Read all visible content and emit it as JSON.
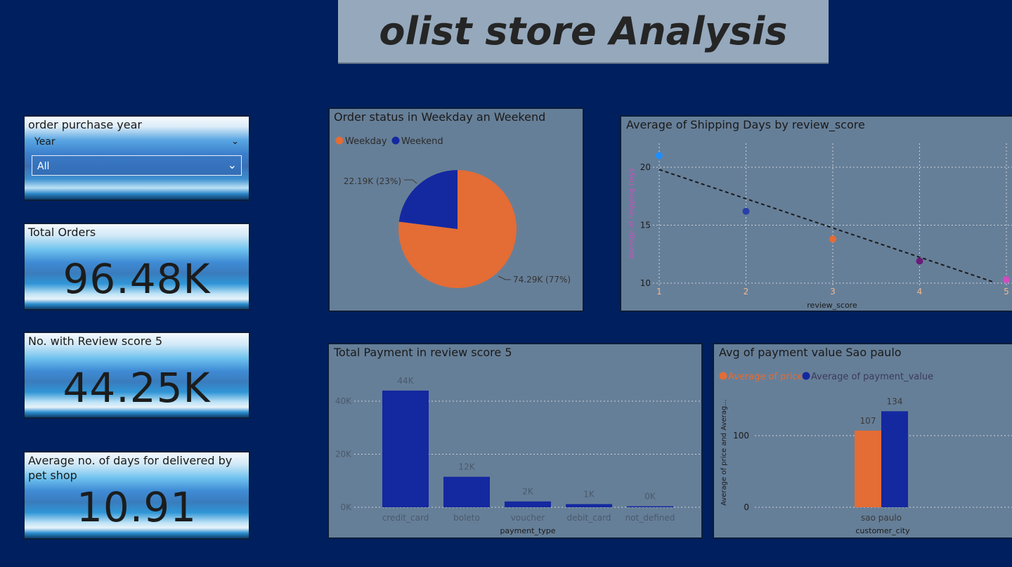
{
  "title": "olist store Analysis",
  "filter": {
    "label": "order purchase year",
    "field_label": "Year",
    "selected": "All"
  },
  "kpis": {
    "total_orders": {
      "label": "Total Orders",
      "value": "96.48K"
    },
    "review5": {
      "label": "No. with Review score 5",
      "value": "44.25K"
    },
    "petshop": {
      "label": "Average no. of days for delivered by pet shop",
      "value": "10.91"
    }
  },
  "colors": {
    "background": "#001f5e",
    "panel": "#667f98",
    "orange": "#e46c35",
    "blue": "#1428a0"
  },
  "chart_data": [
    {
      "type": "pie",
      "title": "Order status in Weekday an Weekend",
      "legend_position": "top-left",
      "slices": [
        {
          "name": "Weekday",
          "value": 74.29,
          "label": "74.29K (77%)",
          "color": "#e46c35"
        },
        {
          "name": "Weekend",
          "value": 22.19,
          "label": "22.19K (23%)",
          "color": "#1428a0"
        }
      ]
    },
    {
      "type": "scatter",
      "title": "Average of Shipping Days by review_score",
      "xlabel": "review_score",
      "ylabel": "Average of Shipping Days",
      "x": [
        1,
        2,
        3,
        4,
        5
      ],
      "y": [
        21,
        16.2,
        13.8,
        11.9,
        10.3
      ],
      "point_colors": [
        "#1e8fff",
        "#2a3fa8",
        "#e46c35",
        "#6a1a7a",
        "#d04cc0"
      ],
      "x_ticks": [
        "1",
        "2",
        "3",
        "4",
        "5"
      ],
      "y_ticks": [
        "10",
        "15",
        "20"
      ],
      "xlim": [
        1,
        5
      ],
      "ylim": [
        10,
        22
      ],
      "trendline": {
        "start": [
          1,
          19.8
        ],
        "end": [
          5,
          9.9
        ]
      },
      "grid": true
    },
    {
      "type": "bar",
      "title": "Total Payment in review score 5",
      "xlabel": "payment_type",
      "ylabel": "",
      "categories": [
        "credit_card",
        "boleto",
        "voucher",
        "debit_card",
        "not_defined"
      ],
      "values": [
        44,
        11.5,
        2.2,
        1.2,
        0.2
      ],
      "data_labels": [
        "44K",
        "12K",
        "2K",
        "1K",
        "0K"
      ],
      "y_ticks": [
        "0K",
        "20K",
        "40K"
      ],
      "ylim": [
        0,
        48
      ],
      "color": "#1428a0",
      "grid": true
    },
    {
      "type": "bar",
      "title": "Avg of payment value Sao paulo",
      "xlabel": "customer_city",
      "ylabel": "Average of price and Averag...",
      "categories": [
        "sao paulo"
      ],
      "series": [
        {
          "name": "Average of price",
          "values": [
            107
          ],
          "color": "#e46c35"
        },
        {
          "name": "Average of payment_value",
          "values": [
            134
          ],
          "color": "#1428a0"
        }
      ],
      "y_ticks": [
        "0",
        "100"
      ],
      "ylim": [
        0,
        150
      ],
      "legend_position": "top-left",
      "grid": true
    }
  ]
}
